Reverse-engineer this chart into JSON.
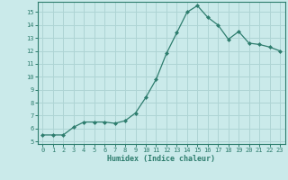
{
  "x": [
    0,
    1,
    2,
    3,
    4,
    5,
    6,
    7,
    8,
    9,
    10,
    11,
    12,
    13,
    14,
    15,
    16,
    17,
    18,
    19,
    20,
    21,
    22,
    23
  ],
  "y": [
    5.5,
    5.5,
    5.5,
    6.1,
    6.5,
    6.5,
    6.5,
    6.4,
    6.6,
    7.2,
    8.4,
    9.8,
    11.8,
    13.4,
    15.0,
    15.5,
    14.6,
    14.0,
    12.9,
    13.5,
    12.6,
    12.5,
    12.3,
    12.0
  ],
  "xlabel": "Humidex (Indice chaleur)",
  "xlim": [
    -0.5,
    23.5
  ],
  "ylim": [
    4.8,
    15.8
  ],
  "yticks": [
    5,
    6,
    7,
    8,
    9,
    10,
    11,
    12,
    13,
    14,
    15
  ],
  "xticks": [
    0,
    1,
    2,
    3,
    4,
    5,
    6,
    7,
    8,
    9,
    10,
    11,
    12,
    13,
    14,
    15,
    16,
    17,
    18,
    19,
    20,
    21,
    22,
    23
  ],
  "line_color": "#2e7d6e",
  "marker": "D",
  "marker_size": 2.0,
  "bg_color": "#caeaea",
  "grid_color": "#aed4d4",
  "axes_color": "#2e7d6e",
  "tick_color": "#2e7d6e",
  "label_color": "#2e7d6e",
  "tick_fontsize": 5.0,
  "xlabel_fontsize": 6.0
}
